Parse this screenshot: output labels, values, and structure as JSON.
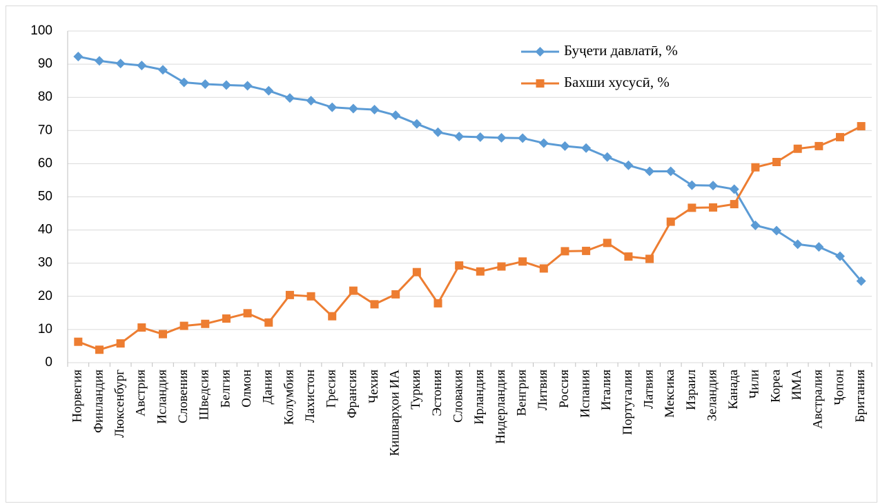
{
  "chart_data": {
    "type": "line",
    "categories": [
      "Норвегия",
      "Финландия",
      "Люксенбург",
      "Австрия",
      "Исландия",
      "Словения",
      "Шведсия",
      "Белгия",
      "Олмон",
      "Дания",
      "Колумбия",
      "Лахистон",
      "Гресия",
      "Франсия",
      "Чехия",
      "Кишварҳои ИА",
      "Туркия",
      "Эстония",
      "Словакия",
      "Ирландия",
      "Нидерландия",
      "Венгрия",
      "Литвия",
      "Россия",
      "Испания",
      "Италия",
      "Португалия",
      "Латвия",
      "Мексика",
      "Израил",
      "Зеландия",
      "Канада",
      "Чили",
      "Кореа",
      "ИМА",
      "Австралия",
      "Ҷопон",
      "Британия"
    ],
    "series": [
      {
        "name": "Буҷети давлатӣ, %",
        "color": "#5b9bd5",
        "marker": "diamond",
        "values": [
          92.3,
          91,
          90.2,
          89.6,
          88.3,
          84.5,
          84,
          83.7,
          83.5,
          82,
          79.8,
          79,
          77,
          76.6,
          76.3,
          74.6,
          72,
          69.5,
          68.2,
          68,
          67.8,
          67.7,
          66.2,
          65.3,
          64.7,
          62,
          59.5,
          57.7,
          57.7,
          53.5,
          53.4,
          52.3,
          41.4,
          39.8,
          35.7,
          34.9,
          32.1,
          24.6
        ]
      },
      {
        "name": "Бахши хусусӣ, %",
        "color": "#ed7d31",
        "marker": "square",
        "values": [
          6.3,
          3.9,
          5.8,
          10.6,
          8.6,
          11.1,
          11.7,
          13.3,
          14.9,
          12.1,
          20.4,
          20,
          14,
          21.7,
          17.6,
          20.6,
          27.3,
          17.9,
          29.3,
          27.5,
          29,
          30.5,
          28.4,
          33.6,
          33.7,
          36.1,
          32,
          31.3,
          42.5,
          46.7,
          46.8,
          47.8,
          58.9,
          60.5,
          64.5,
          65.3,
          68,
          71.3
        ]
      }
    ],
    "ylim": [
      0,
      100
    ],
    "yticks": [
      0,
      10,
      20,
      30,
      40,
      50,
      60,
      70,
      80,
      90,
      100
    ],
    "grid": true,
    "legend": "top-right"
  }
}
